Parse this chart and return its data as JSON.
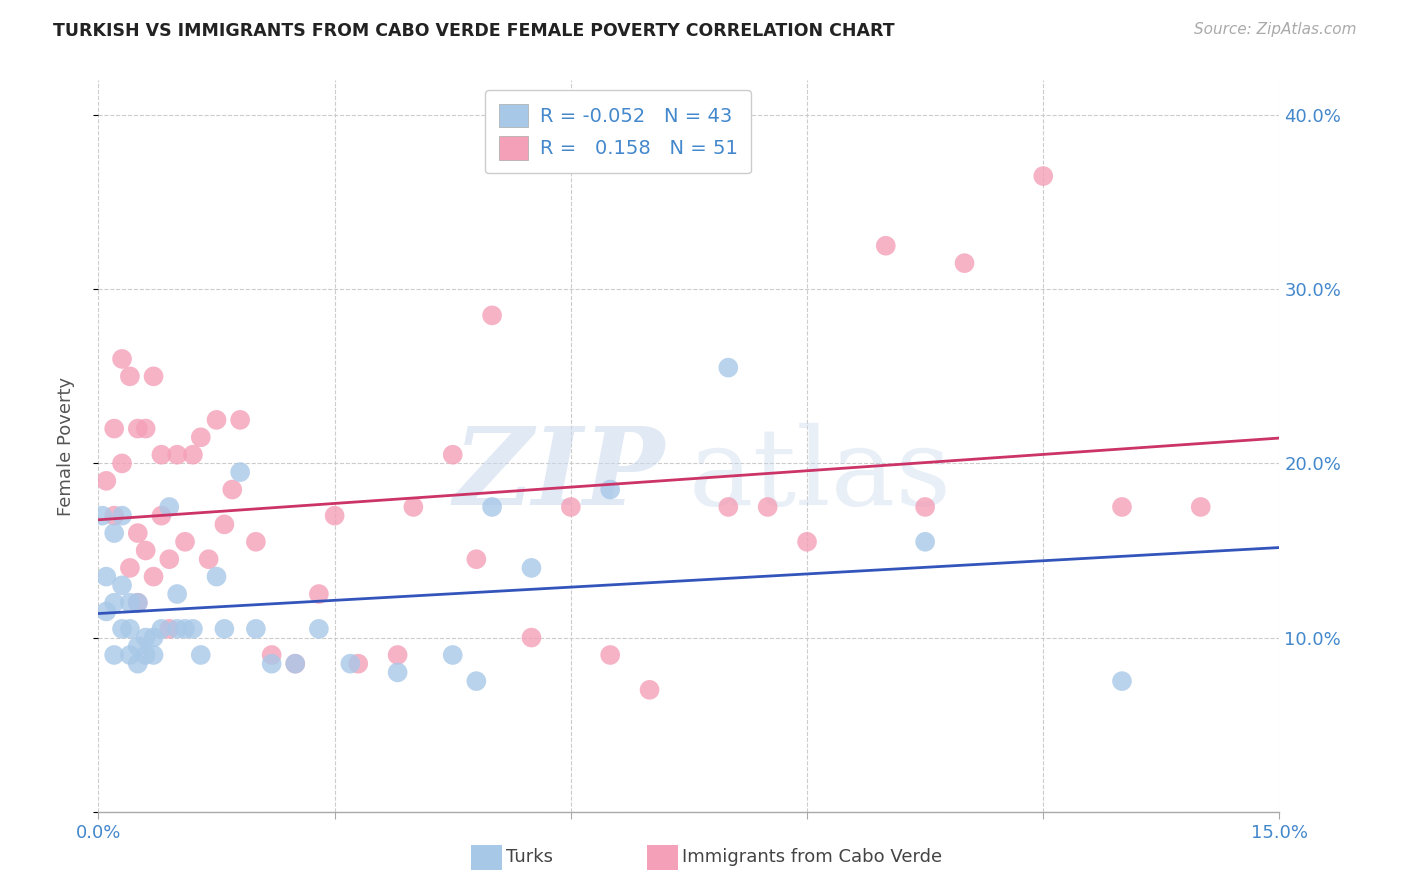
{
  "title": "TURKISH VS IMMIGRANTS FROM CABO VERDE FEMALE POVERTY CORRELATION CHART",
  "source": "Source: ZipAtlas.com",
  "ylabel": "Female Poverty",
  "xlim": [
    0.0,
    0.15
  ],
  "ylim": [
    0.0,
    0.42
  ],
  "yticks": [
    0.0,
    0.1,
    0.2,
    0.3,
    0.4
  ],
  "xticks": [
    0.0,
    0.03,
    0.06,
    0.09,
    0.12,
    0.15
  ],
  "right_ytick_labels": [
    "",
    "10.0%",
    "20.0%",
    "30.0%",
    "40.0%"
  ],
  "legend_r_blue": "-0.052",
  "legend_n_blue": "43",
  "legend_r_pink": "0.158",
  "legend_n_pink": "51",
  "blue_scatter_color": "#A8C8E8",
  "pink_scatter_color": "#F4A0B8",
  "line_blue_color": "#3355BB",
  "line_pink_color": "#CC3366",
  "axis_label_color": "#4488CC",
  "turks_x": [
    0.0005,
    0.001,
    0.001,
    0.002,
    0.002,
    0.002,
    0.003,
    0.003,
    0.003,
    0.004,
    0.004,
    0.004,
    0.005,
    0.005,
    0.005,
    0.006,
    0.006,
    0.007,
    0.007,
    0.008,
    0.009,
    0.01,
    0.01,
    0.011,
    0.012,
    0.013,
    0.015,
    0.016,
    0.018,
    0.02,
    0.022,
    0.025,
    0.028,
    0.032,
    0.038,
    0.048,
    0.05,
    0.065,
    0.08,
    0.105,
    0.13,
    0.055,
    0.045
  ],
  "turks_y": [
    0.17,
    0.135,
    0.115,
    0.16,
    0.12,
    0.09,
    0.13,
    0.105,
    0.17,
    0.12,
    0.105,
    0.09,
    0.12,
    0.095,
    0.085,
    0.1,
    0.09,
    0.1,
    0.09,
    0.105,
    0.175,
    0.125,
    0.105,
    0.105,
    0.105,
    0.09,
    0.135,
    0.105,
    0.195,
    0.105,
    0.085,
    0.085,
    0.105,
    0.085,
    0.08,
    0.075,
    0.175,
    0.185,
    0.255,
    0.155,
    0.075,
    0.14,
    0.09
  ],
  "cabo_x": [
    0.001,
    0.002,
    0.002,
    0.003,
    0.003,
    0.004,
    0.004,
    0.005,
    0.005,
    0.005,
    0.006,
    0.006,
    0.007,
    0.007,
    0.008,
    0.008,
    0.009,
    0.009,
    0.01,
    0.011,
    0.012,
    0.013,
    0.014,
    0.015,
    0.016,
    0.017,
    0.018,
    0.02,
    0.022,
    0.025,
    0.028,
    0.03,
    0.033,
    0.038,
    0.04,
    0.045,
    0.048,
    0.05,
    0.055,
    0.06,
    0.065,
    0.07,
    0.085,
    0.09,
    0.1,
    0.105,
    0.11,
    0.12,
    0.13,
    0.14,
    0.08
  ],
  "cabo_y": [
    0.19,
    0.22,
    0.17,
    0.26,
    0.2,
    0.14,
    0.25,
    0.22,
    0.16,
    0.12,
    0.22,
    0.15,
    0.135,
    0.25,
    0.205,
    0.17,
    0.105,
    0.145,
    0.205,
    0.155,
    0.205,
    0.215,
    0.145,
    0.225,
    0.165,
    0.185,
    0.225,
    0.155,
    0.09,
    0.085,
    0.125,
    0.17,
    0.085,
    0.09,
    0.175,
    0.205,
    0.145,
    0.285,
    0.1,
    0.175,
    0.09,
    0.07,
    0.175,
    0.155,
    0.325,
    0.175,
    0.315,
    0.365,
    0.175,
    0.175,
    0.175
  ]
}
